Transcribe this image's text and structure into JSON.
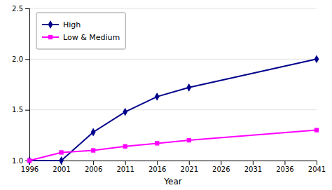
{
  "chart_data": {
    "type": "line",
    "xlabel": "Year",
    "x": [
      1996,
      2001,
      2006,
      2011,
      2016,
      2021,
      2041
    ],
    "series": [
      {
        "name": "High",
        "color": "#00008b",
        "marker": "diamond",
        "values": [
          1.0,
          1.0,
          1.28,
          1.48,
          1.63,
          1.72,
          2.0
        ]
      },
      {
        "name": "Low & Medium",
        "color": "#ff00ff",
        "marker": "square",
        "values": [
          1.0,
          1.08,
          1.1,
          1.14,
          1.17,
          1.2,
          1.3
        ]
      }
    ],
    "xlim": [
      1996,
      2041
    ],
    "xticks": [
      1996,
      2001,
      2006,
      2011,
      2016,
      2021,
      2026,
      2031,
      2036,
      2041
    ],
    "ylim": [
      1.0,
      2.5
    ],
    "yticks": [
      {
        "value": 1.0,
        "label": "1.0"
      },
      1.5,
      {
        "value": 2.0,
        "label": "2.0"
      },
      2.5
    ],
    "grid": "y",
    "legend": "upper left"
  }
}
